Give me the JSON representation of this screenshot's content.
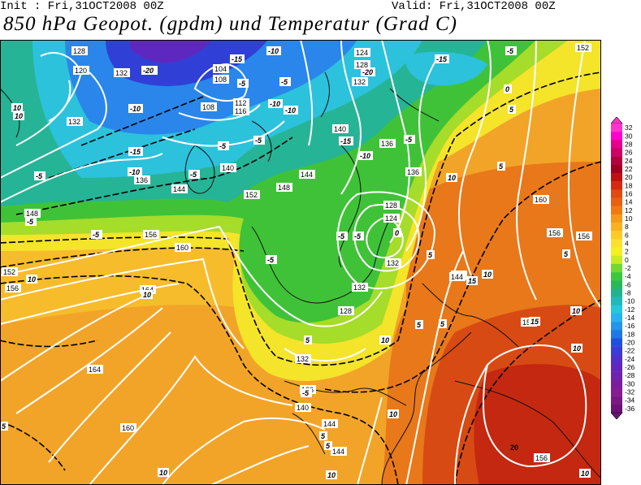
{
  "header": {
    "init": "Init : Fri,31OCT2008 00Z",
    "valid": "Valid: Fri,31OCT2008 00Z",
    "title": "850 hPa Geopot. (gpdm) und Temperatur (Grad C)"
  },
  "legend": {
    "levels": [
      "32",
      "30",
      "28",
      "26",
      "24",
      "22",
      "20",
      "18",
      "16",
      "14",
      "12",
      "10",
      "8",
      "6",
      "4",
      "2",
      "0",
      "-2",
      "-4",
      "-6",
      "-8",
      "-10",
      "-12",
      "-14",
      "-16",
      "-18",
      "-20",
      "-22",
      "-24",
      "-26",
      "-28",
      "-30",
      "-32",
      "-34",
      "-36"
    ],
    "colors": [
      "#ff33cc",
      "#ff00cc",
      "#e6008c",
      "#cc0066",
      "#b30040",
      "#a00020",
      "#c01010",
      "#d62a10",
      "#e04a10",
      "#e86010",
      "#ef7a12",
      "#f59a18",
      "#f9b21e",
      "#fdca28",
      "#fde030",
      "#f5f020",
      "#c8ea20",
      "#72d832",
      "#3cc83c",
      "#2ab85a",
      "#22b28e",
      "#20b8b8",
      "#26c6dc",
      "#2ab0f0",
      "#2494ec",
      "#1e78e6",
      "#2050e0",
      "#3a3cd8",
      "#5030cc",
      "#6226be",
      "#6e22ae",
      "#7a1ea0",
      "#861c92",
      "#7a1884",
      "#6c1476"
    ]
  },
  "geopotential_labels": [
    "128",
    "120",
    "132",
    "132",
    "108",
    "104",
    "112",
    "116",
    "108",
    "124",
    "128",
    "132",
    "140",
    "136",
    "136",
    "136",
    "144",
    "140",
    "148",
    "144",
    "148",
    "152",
    "128",
    "124",
    "144",
    "152",
    "156",
    "160",
    "160",
    "156",
    "156",
    "152",
    "156",
    "164",
    "164",
    "128",
    "132",
    "132",
    "132",
    "144",
    "136",
    "140",
    "144",
    "144",
    "156",
    "160",
    "156",
    "20"
  ],
  "temperature_labels": [
    "-20",
    "-15",
    "-10",
    "-15",
    "-10",
    "-5",
    "-5",
    "-10",
    "-15",
    "-10",
    "-10",
    "-15",
    "-20",
    "-5",
    "-5",
    "-5",
    "-5",
    "-10",
    "-5",
    "-5",
    "-5",
    "-5",
    "0",
    "-5",
    "-5",
    "-5",
    "0",
    "5",
    "5",
    "5",
    "5",
    "5",
    "10",
    "10",
    "10",
    "10",
    "10",
    "5",
    "5",
    "10",
    "10",
    "5",
    "10",
    "10",
    "15",
    "15",
    "10",
    "5",
    "10",
    "10",
    "-5",
    "5",
    "10"
  ]
}
